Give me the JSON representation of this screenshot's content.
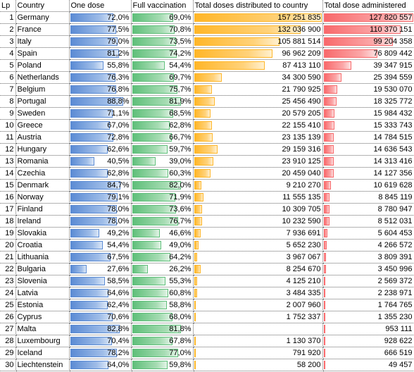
{
  "headers": {
    "lp": "Lp",
    "country": "Country",
    "one_dose": "One dose",
    "full": "Full vaccination",
    "distributed": "Total doses distributed to country",
    "administered": "Total dose administered"
  },
  "bar_colors": {
    "one_dose": "#5b8bd4",
    "full": "#5fbf7a",
    "distributed": "#ffb628",
    "administered": "#f8696b"
  },
  "rows": [
    {
      "lp": "1",
      "country": "Germany",
      "one": "72,0%",
      "one_v": 72.0,
      "full": "69,0%",
      "full_v": 69.0,
      "dist": "157 251 835",
      "dist_v": 157251835,
      "adm": "127 820 557",
      "adm_v": 127820557
    },
    {
      "lp": "2",
      "country": "France",
      "one": "77,5%",
      "one_v": 77.5,
      "full": "70,8%",
      "full_v": 70.8,
      "dist": "132 036 900",
      "dist_v": 132036900,
      "adm": "110 370 151",
      "adm_v": 110370151
    },
    {
      "lp": "3",
      "country": "Italy",
      "one": "79,0%",
      "one_v": 79.0,
      "full": "73,5%",
      "full_v": 73.5,
      "dist": "105 881 514",
      "dist_v": 105881514,
      "adm": "99 204 358",
      "adm_v": 99204358
    },
    {
      "lp": "4",
      "country": "Spain",
      "one": "81,2%",
      "one_v": 81.2,
      "full": "74,2%",
      "full_v": 74.2,
      "dist": "96 962 209",
      "dist_v": 96962209,
      "adm": "76 809 442",
      "adm_v": 76809442
    },
    {
      "lp": "5",
      "country": "Poland",
      "one": "55,8%",
      "one_v": 55.8,
      "full": "54,4%",
      "full_v": 54.4,
      "dist": "87 413 110",
      "dist_v": 87413110,
      "adm": "39 347 915",
      "adm_v": 39347915
    },
    {
      "lp": "6",
      "country": "Netherlands",
      "one": "76,3%",
      "one_v": 76.3,
      "full": "69,7%",
      "full_v": 69.7,
      "dist": "34 300 590",
      "dist_v": 34300590,
      "adm": "25 394 559",
      "adm_v": 25394559
    },
    {
      "lp": "7",
      "country": "Belgium",
      "one": "76,8%",
      "one_v": 76.8,
      "full": "75,7%",
      "full_v": 75.7,
      "dist": "21 790 925",
      "dist_v": 21790925,
      "adm": "19 530 070",
      "adm_v": 19530070
    },
    {
      "lp": "8",
      "country": "Portugal",
      "one": "88,8%",
      "one_v": 88.8,
      "full": "81,9%",
      "full_v": 81.9,
      "dist": "25 456 490",
      "dist_v": 25456490,
      "adm": "18 325 772",
      "adm_v": 18325772
    },
    {
      "lp": "9",
      "country": "Sweden",
      "one": "71,1%",
      "one_v": 71.1,
      "full": "68,5%",
      "full_v": 68.5,
      "dist": "20 579 205",
      "dist_v": 20579205,
      "adm": "15 984 432",
      "adm_v": 15984432
    },
    {
      "lp": "10",
      "country": "Greece",
      "one": "67,0%",
      "one_v": 67.0,
      "full": "62,8%",
      "full_v": 62.8,
      "dist": "22 155 410",
      "dist_v": 22155410,
      "adm": "15 333 743",
      "adm_v": 15333743
    },
    {
      "lp": "11",
      "country": "Austria",
      "one": "72,8%",
      "one_v": 72.8,
      "full": "66,7%",
      "full_v": 66.7,
      "dist": "23 135 139",
      "dist_v": 23135139,
      "adm": "14 784 515",
      "adm_v": 14784515
    },
    {
      "lp": "12",
      "country": "Hungary",
      "one": "62,6%",
      "one_v": 62.6,
      "full": "59,7%",
      "full_v": 59.7,
      "dist": "29 159 316",
      "dist_v": 29159316,
      "adm": "14 636 543",
      "adm_v": 14636543
    },
    {
      "lp": "13",
      "country": "Romania",
      "one": "40,5%",
      "one_v": 40.5,
      "full": "39,0%",
      "full_v": 39.0,
      "dist": "23 910 125",
      "dist_v": 23910125,
      "adm": "14 313 416",
      "adm_v": 14313416
    },
    {
      "lp": "14",
      "country": "Czechia",
      "one": "62,8%",
      "one_v": 62.8,
      "full": "60,3%",
      "full_v": 60.3,
      "dist": "20 459 040",
      "dist_v": 20459040,
      "adm": "14 127 356",
      "adm_v": 14127356
    },
    {
      "lp": "15",
      "country": "Denmark",
      "one": "84,7%",
      "one_v": 84.7,
      "full": "82,0%",
      "full_v": 82.0,
      "dist": "9 210 270",
      "dist_v": 9210270,
      "adm": "10 619 628",
      "adm_v": 10619628
    },
    {
      "lp": "16",
      "country": "Norway",
      "one": "79,1%",
      "one_v": 79.1,
      "full": "71,9%",
      "full_v": 71.9,
      "dist": "11 555 135",
      "dist_v": 11555135,
      "adm": "8 845 119",
      "adm_v": 8845119
    },
    {
      "lp": "17",
      "country": "Finland",
      "one": "78,0%",
      "one_v": 78.0,
      "full": "73,6%",
      "full_v": 73.6,
      "dist": "10 309 705",
      "dist_v": 10309705,
      "adm": "8 780 947",
      "adm_v": 8780947
    },
    {
      "lp": "18",
      "country": "Ireland",
      "one": "78,0%",
      "one_v": 78.0,
      "full": "76,7%",
      "full_v": 76.7,
      "dist": "10 232 590",
      "dist_v": 10232590,
      "adm": "8 512 031",
      "adm_v": 8512031
    },
    {
      "lp": "19",
      "country": "Slovakia",
      "one": "49,2%",
      "one_v": 49.2,
      "full": "46,6%",
      "full_v": 46.6,
      "dist": "7 936 691",
      "dist_v": 7936691,
      "adm": "5 604 453",
      "adm_v": 5604453
    },
    {
      "lp": "20",
      "country": "Croatia",
      "one": "54,4%",
      "one_v": 54.4,
      "full": "49,0%",
      "full_v": 49.0,
      "dist": "5 652 230",
      "dist_v": 5652230,
      "adm": "4 266 572",
      "adm_v": 4266572
    },
    {
      "lp": "21",
      "country": "Lithuania",
      "one": "67,5%",
      "one_v": 67.5,
      "full": "64,2%",
      "full_v": 64.2,
      "dist": "3 967 067",
      "dist_v": 3967067,
      "adm": "3 809 391",
      "adm_v": 3809391
    },
    {
      "lp": "22",
      "country": "Bulgaria",
      "one": "27,6%",
      "one_v": 27.6,
      "full": "26,2%",
      "full_v": 26.2,
      "dist": "8 254 670",
      "dist_v": 8254670,
      "adm": "3 450 996",
      "adm_v": 3450996
    },
    {
      "lp": "23",
      "country": "Slovenia",
      "one": "58,5%",
      "one_v": 58.5,
      "full": "55,3%",
      "full_v": 55.3,
      "dist": "4 125 210",
      "dist_v": 4125210,
      "adm": "2 569 372",
      "adm_v": 2569372
    },
    {
      "lp": "24",
      "country": "Latvia",
      "one": "64,6%",
      "one_v": 64.6,
      "full": "60,8%",
      "full_v": 60.8,
      "dist": "3 484 335",
      "dist_v": 3484335,
      "adm": "2 238 971",
      "adm_v": 2238971
    },
    {
      "lp": "25",
      "country": "Estonia",
      "one": "62,4%",
      "one_v": 62.4,
      "full": "58,8%",
      "full_v": 58.8,
      "dist": "2 007 960",
      "dist_v": 2007960,
      "adm": "1 764 765",
      "adm_v": 1764765
    },
    {
      "lp": "26",
      "country": "Cyprus",
      "one": "70,6%",
      "one_v": 70.6,
      "full": "68,0%",
      "full_v": 68.0,
      "dist": "1 752 337",
      "dist_v": 1752337,
      "adm": "1 355 230",
      "adm_v": 1355230
    },
    {
      "lp": "27",
      "country": "Malta",
      "one": "82,8%",
      "one_v": 82.8,
      "full": "81,8%",
      "full_v": 81.8,
      "dist": "",
      "dist_v": 0,
      "adm": "953 111",
      "adm_v": 953111
    },
    {
      "lp": "28",
      "country": "Luxembourg",
      "one": "70,4%",
      "one_v": 70.4,
      "full": "67,8%",
      "full_v": 67.8,
      "dist": "1 130 370",
      "dist_v": 1130370,
      "adm": "928 622",
      "adm_v": 928622
    },
    {
      "lp": "29",
      "country": "Iceland",
      "one": "78,2%",
      "one_v": 78.2,
      "full": "77,0%",
      "full_v": 77.0,
      "dist": "791 920",
      "dist_v": 791920,
      "adm": "666 519",
      "adm_v": 666519
    },
    {
      "lp": "30",
      "country": "Liechtenstein",
      "one": "64,0%",
      "one_v": 64.0,
      "full": "59,8%",
      "full_v": 59.8,
      "dist": "58 200",
      "dist_v": 58200,
      "adm": "49 457",
      "adm_v": 49457
    }
  ]
}
